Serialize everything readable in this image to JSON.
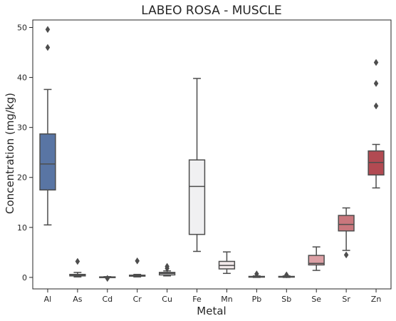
{
  "chart_data": {
    "type": "boxplot",
    "title": "LABEO ROSA - MUSCLE",
    "xlabel": "Metal",
    "ylabel": "Concentration (mg/kg)",
    "ylim": [
      -2.3,
      51.5
    ],
    "yticks": [
      0,
      10,
      20,
      30,
      40,
      50
    ],
    "categories": [
      "Al",
      "As",
      "Cd",
      "Cr",
      "Cu",
      "Fe",
      "Mn",
      "Pb",
      "Sb",
      "Se",
      "Sr",
      "Zn"
    ],
    "boxes": [
      {
        "category": "Al",
        "whisker_low": 10.5,
        "q1": 17.5,
        "median": 22.7,
        "q3": 28.7,
        "whisker_high": 37.6,
        "outliers": [
          46.0,
          49.6
        ],
        "color": "#5975a4"
      },
      {
        "category": "As",
        "whisker_low": 0.1,
        "q1": 0.3,
        "median": 0.5,
        "q3": 0.6,
        "whisker_high": 1.0,
        "outliers": [
          3.2
        ],
        "color": "#b7c1d2"
      },
      {
        "category": "Cd",
        "whisker_low": 0.0,
        "q1": 0.0,
        "median": 0.05,
        "q3": 0.1,
        "whisker_high": 0.15,
        "outliers": [
          -0.2
        ],
        "color": "#cdd2db"
      },
      {
        "category": "Cr",
        "whisker_low": 0.1,
        "q1": 0.25,
        "median": 0.35,
        "q3": 0.45,
        "whisker_high": 0.6,
        "outliers": [
          3.3
        ],
        "color": "#dcdee3"
      },
      {
        "category": "Cu",
        "whisker_low": 0.3,
        "q1": 0.5,
        "median": 0.8,
        "q3": 1.0,
        "whisker_high": 1.3,
        "outliers": [
          1.8,
          2.2
        ],
        "color": "#e6e7e9"
      },
      {
        "category": "Fe",
        "whisker_low": 5.2,
        "q1": 8.6,
        "median": 18.2,
        "q3": 23.5,
        "whisker_high": 39.8,
        "outliers": [],
        "color": "#f0f0f2"
      },
      {
        "category": "Mn",
        "whisker_low": 0.8,
        "q1": 1.7,
        "median": 2.4,
        "q3": 3.2,
        "whisker_high": 5.1,
        "outliers": [],
        "color": "#f2e9ea"
      },
      {
        "category": "Pb",
        "whisker_low": 0.0,
        "q1": 0.05,
        "median": 0.1,
        "q3": 0.2,
        "whisker_high": 0.3,
        "outliers": [
          0.7
        ],
        "color": "#eedadc"
      },
      {
        "category": "Sb",
        "whisker_low": 0.0,
        "q1": 0.05,
        "median": 0.1,
        "q3": 0.2,
        "whisker_high": 0.3,
        "outliers": [
          0.5
        ],
        "color": "#e8c8cb"
      },
      {
        "category": "Se",
        "whisker_low": 1.4,
        "q1": 2.5,
        "median": 2.8,
        "q3": 4.4,
        "whisker_high": 6.1,
        "outliers": [],
        "color": "#dca0a5"
      },
      {
        "category": "Sr",
        "whisker_low": 5.4,
        "q1": 9.3,
        "median": 10.6,
        "q3": 12.4,
        "whisker_high": 13.9,
        "outliers": [
          4.5
        ],
        "color": "#c9777d"
      },
      {
        "category": "Zn",
        "whisker_low": 17.9,
        "q1": 20.5,
        "median": 23.0,
        "q3": 25.3,
        "whisker_high": 26.6,
        "outliers": [
          34.3,
          38.8,
          43.0
        ],
        "color": "#b24a52"
      }
    ]
  }
}
